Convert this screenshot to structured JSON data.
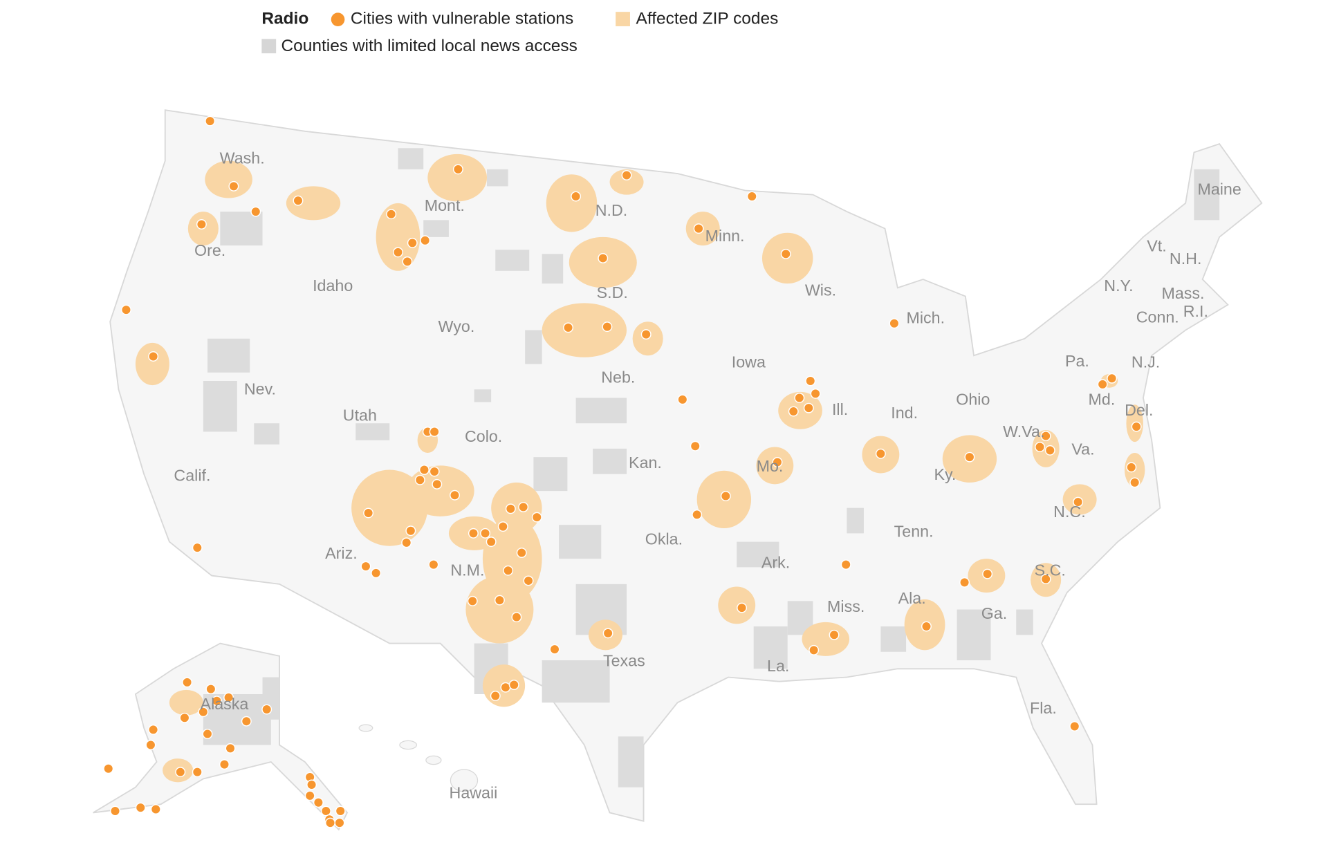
{
  "legend": {
    "title": "Radio",
    "items": [
      "Cities with vulnerable stations",
      "Affected ZIP codes",
      "Counties with limited local news access"
    ]
  },
  "map": {
    "labels": [
      "Wash.",
      "Ore.",
      "Calif.",
      "Nev.",
      "Idaho",
      "Mont.",
      "Wyo.",
      "Utah",
      "Colo.",
      "Ariz.",
      "N.M.",
      "N.D.",
      "S.D.",
      "Neb.",
      "Kan.",
      "Okla.",
      "Texas",
      "Minn.",
      "Iowa",
      "Mo.",
      "Ark.",
      "La.",
      "Wis.",
      "Ill.",
      "Mich.",
      "Ind.",
      "Ohio",
      "Ky.",
      "Tenn.",
      "Miss.",
      "Ala.",
      "Ga.",
      "Fla.",
      "S.C.",
      "N.C.",
      "Va.",
      "W.Va.",
      "Pa.",
      "Md.",
      "Del.",
      "N.J.",
      "N.Y.",
      "Vt.",
      "N.H.",
      "Maine",
      "Mass.",
      "Conn.",
      "R.I.",
      "Alaska",
      "Hawaii"
    ]
  }
}
